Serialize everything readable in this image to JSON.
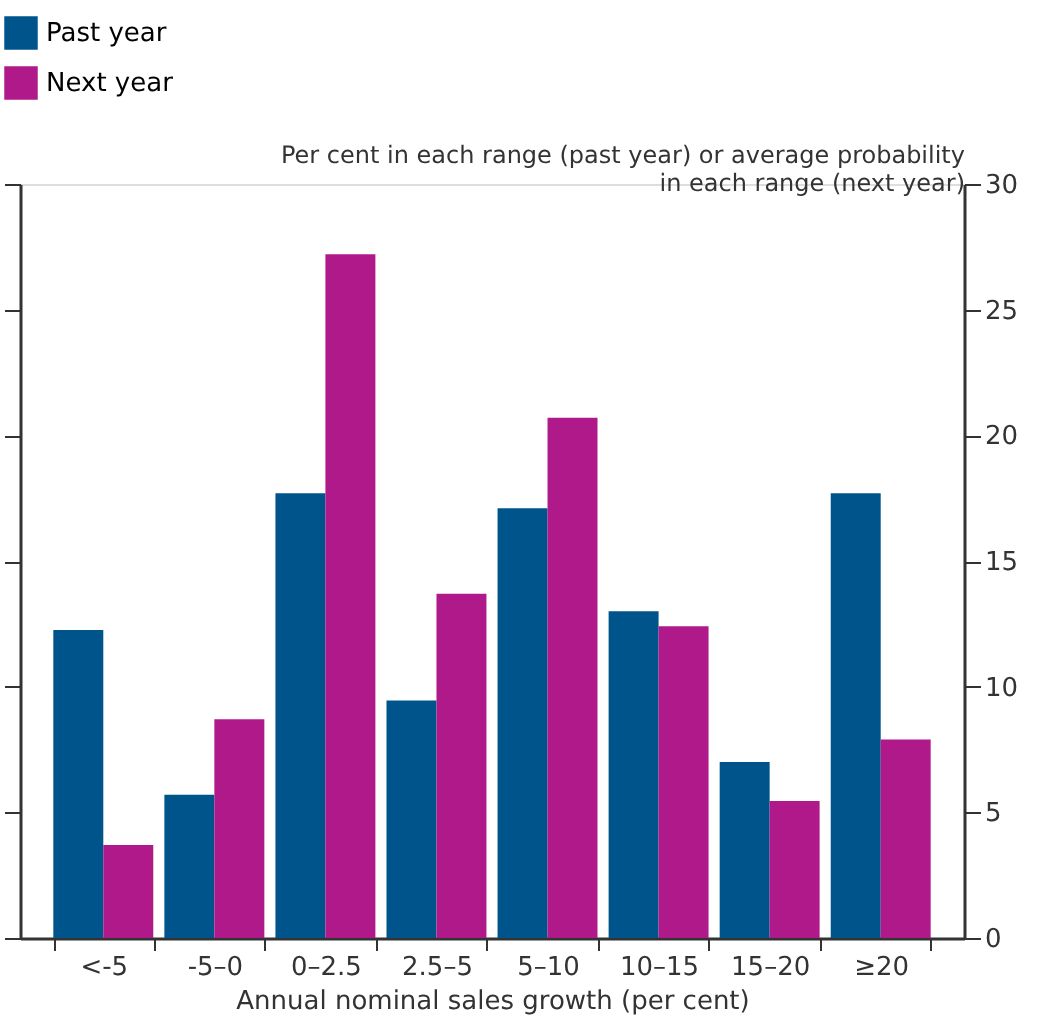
{
  "chart_data": {
    "type": "bar",
    "categories": [
      "<-5",
      "-5–0",
      "0–2.5",
      "2.5–5",
      "5–10",
      "10–15",
      "15–20",
      "≥20"
    ],
    "series": [
      {
        "name": "Past year",
        "color": "#00548c",
        "values": [
          12.25,
          5.7,
          17.7,
          9.45,
          17.1,
          13.0,
          7.0,
          17.7
        ]
      },
      {
        "name": "Next year",
        "color": "#b0198a",
        "values": [
          3.7,
          8.7,
          27.2,
          13.7,
          20.7,
          12.4,
          5.45,
          7.9
        ]
      }
    ],
    "xlabel": "Annual nominal sales growth (per cent)",
    "ylabel": "Per cent in each range (past year) or average probability in each range (next year)",
    "ylim": [
      0,
      30
    ],
    "yticks": [
      0,
      5,
      10,
      15,
      20,
      25,
      30
    ],
    "legend": "top left",
    "grid": false
  }
}
